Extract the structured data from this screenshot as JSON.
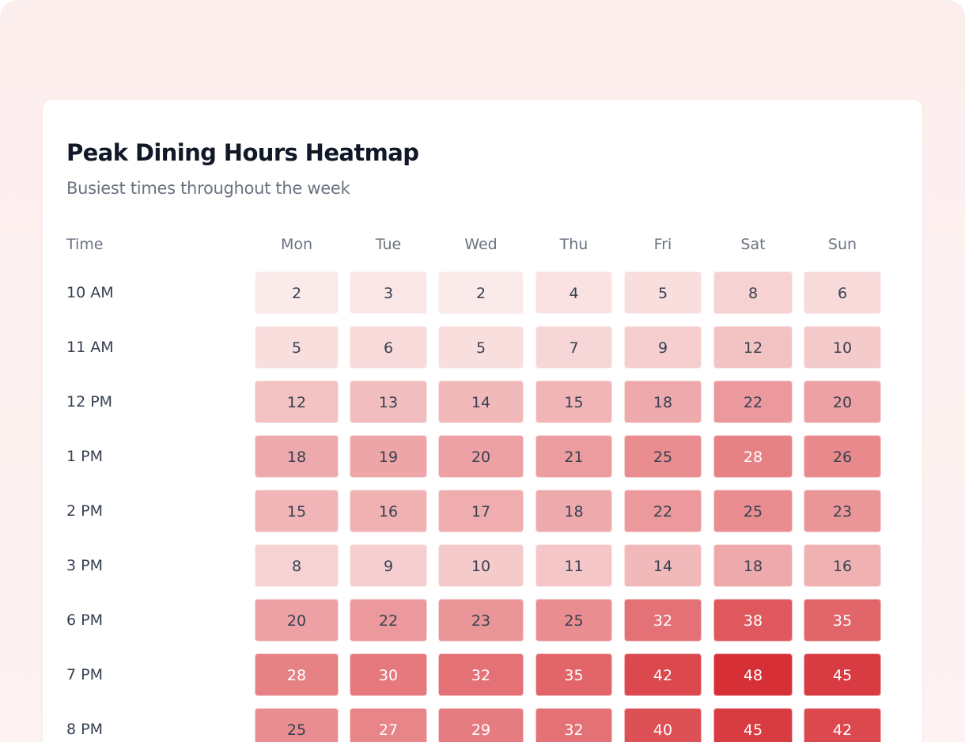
{
  "chart_data": {
    "type": "heatmap",
    "title": "Peak Dining Hours Heatmap",
    "subtitle": "Busiest times throughout the week",
    "row_header": "Time",
    "columns": [
      "Mon",
      "Tue",
      "Wed",
      "Thu",
      "Fri",
      "Sat",
      "Sun"
    ],
    "rows": [
      "10 AM",
      "11 AM",
      "12 PM",
      "1 PM",
      "2 PM",
      "3 PM",
      "6 PM",
      "7 PM",
      "8 PM"
    ],
    "values": [
      [
        2,
        3,
        2,
        4,
        5,
        8,
        6
      ],
      [
        5,
        6,
        5,
        7,
        9,
        12,
        10
      ],
      [
        12,
        13,
        14,
        15,
        18,
        22,
        20
      ],
      [
        18,
        19,
        20,
        21,
        25,
        28,
        26
      ],
      [
        15,
        16,
        17,
        18,
        22,
        25,
        23
      ],
      [
        8,
        9,
        10,
        11,
        14,
        18,
        16
      ],
      [
        20,
        22,
        23,
        25,
        32,
        38,
        35
      ],
      [
        28,
        30,
        32,
        35,
        42,
        48,
        45
      ],
      [
        25,
        27,
        29,
        32,
        40,
        45,
        42
      ]
    ],
    "value_range": [
      0,
      48
    ],
    "colors": {
      "low": "#fdf2f2",
      "high": "#d63036",
      "text_dark": "#374151",
      "text_light": "#ffffff"
    }
  }
}
